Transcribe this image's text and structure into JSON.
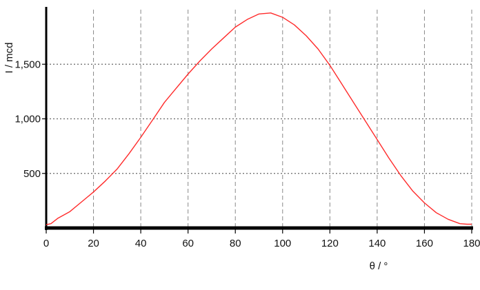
{
  "chart_data": {
    "type": "line",
    "xlabel": "θ / °",
    "ylabel": "I / mcd",
    "xlim": [
      0,
      180
    ],
    "ylim": [
      0,
      2000
    ],
    "grid": true,
    "x_ticks": [
      0,
      20,
      40,
      60,
      80,
      100,
      120,
      140,
      160,
      180
    ],
    "x_tick_labels": [
      "0",
      "20",
      "40",
      "60",
      "80",
      "100",
      "120",
      "140",
      "160",
      "180"
    ],
    "y_ticks": [
      500,
      1000,
      1500
    ],
    "y_tick_labels": [
      "500",
      "1,000",
      "1,500"
    ],
    "series": [
      {
        "color": "#ff2a2a",
        "x": [
          0,
          2,
          5,
          10,
          15,
          20,
          25,
          30,
          35,
          40,
          45,
          50,
          55,
          60,
          65,
          70,
          75,
          80,
          85,
          90,
          95,
          100,
          105,
          110,
          115,
          120,
          125,
          130,
          135,
          140,
          145,
          150,
          155,
          160,
          165,
          170,
          175,
          178,
          180
        ],
        "y": [
          30,
          40,
          90,
          150,
          240,
          330,
          430,
          540,
          680,
          830,
          990,
          1150,
          1280,
          1410,
          1530,
          1640,
          1740,
          1840,
          1910,
          1960,
          1970,
          1930,
          1860,
          1760,
          1640,
          1490,
          1320,
          1150,
          980,
          810,
          640,
          480,
          340,
          230,
          140,
          80,
          40,
          35,
          35
        ]
      }
    ]
  }
}
